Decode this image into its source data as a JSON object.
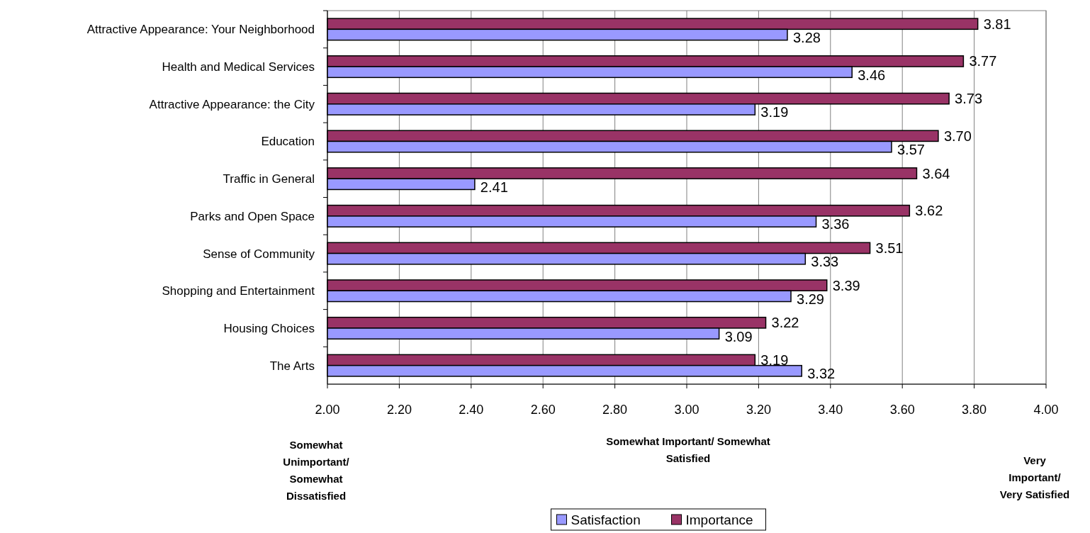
{
  "chart_data": {
    "type": "bar",
    "orientation": "horizontal",
    "categories": [
      "Attractive Appearance: Your Neighborhood",
      "Health and Medical Services",
      "Attractive Appearance: the City",
      "Education",
      "Traffic in General",
      "Parks and Open Space",
      "Sense of Community",
      "Shopping and Entertainment",
      "Housing Choices",
      "The Arts"
    ],
    "series": [
      {
        "name": "Importance",
        "color": "#993366",
        "values": [
          3.81,
          3.77,
          3.73,
          3.7,
          3.64,
          3.62,
          3.51,
          3.39,
          3.22,
          3.19
        ],
        "value_labels": [
          "3.81",
          "3.77",
          "3.73",
          "3.70",
          "3.64",
          "3.62",
          "3.51",
          "3.39",
          "3.22",
          "3.19"
        ]
      },
      {
        "name": "Satisfaction",
        "color": "#9999ff",
        "values": [
          3.28,
          3.46,
          3.19,
          3.57,
          2.41,
          3.36,
          3.33,
          3.29,
          3.09,
          3.32
        ],
        "value_labels": [
          "3.28",
          "3.46",
          "3.19",
          "3.57",
          "2.41",
          "3.36",
          "3.33",
          "3.29",
          "3.09",
          "3.32"
        ]
      }
    ],
    "xlim": [
      2,
      4
    ],
    "xticks": [
      {
        "value": 2,
        "label": "2.00"
      },
      {
        "value": 2.2,
        "label": "2.20"
      },
      {
        "value": 2.4,
        "label": "2.40"
      },
      {
        "value": 2.6,
        "label": "2.60"
      },
      {
        "value": 2.8,
        "label": "2.80"
      },
      {
        "value": 3,
        "label": "3.00"
      },
      {
        "value": 3.2,
        "label": "3.20"
      },
      {
        "value": 3.4,
        "label": "3.40"
      },
      {
        "value": 3.6,
        "label": "3.60"
      },
      {
        "value": 3.8,
        "label": "3.80"
      },
      {
        "value": 4,
        "label": "4.00"
      }
    ],
    "grid": "x",
    "legend": "bottom",
    "annotations": [
      "Somewhat Unimportant/ Somewhat Dissatisfied",
      "Somewhat Important/ Somewhat Satisfied",
      "Very Important/ Very Satisfied"
    ]
  }
}
